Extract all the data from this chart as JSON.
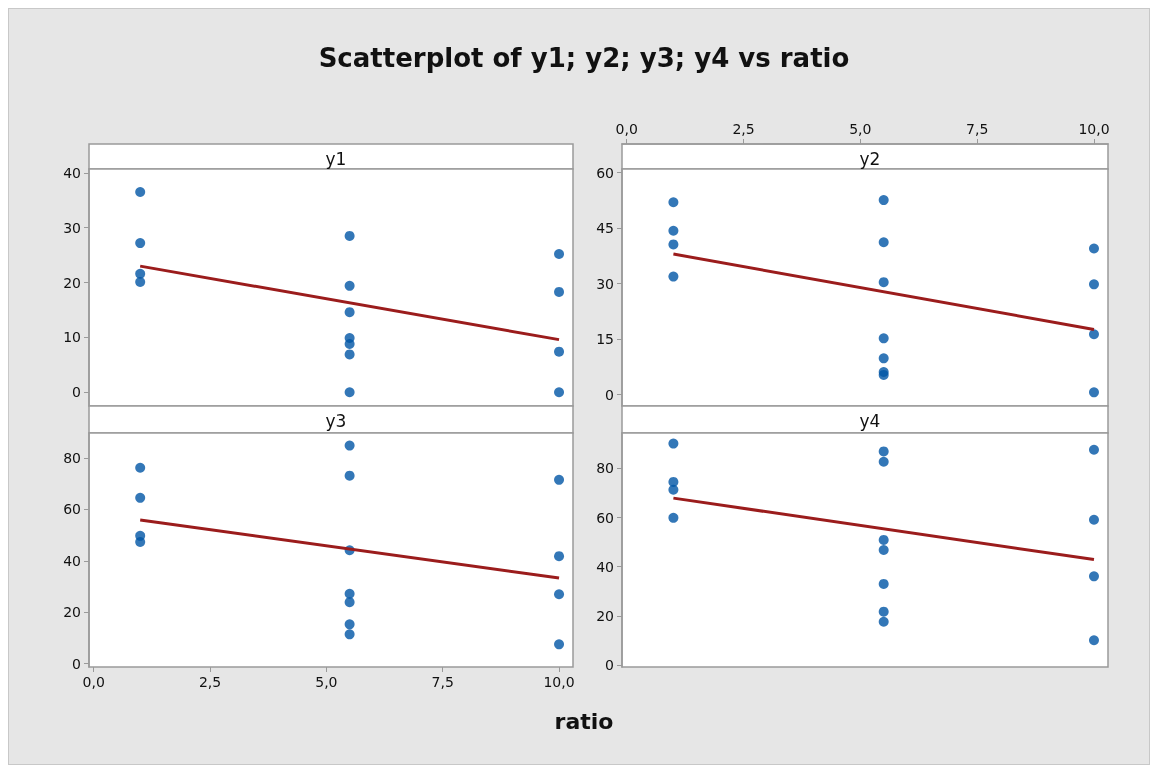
{
  "chart_data": [
    {
      "type": "scatter",
      "title": "y1",
      "annotations": [
        "Scatterplot of y1; y2; y3; y4 vs ratio"
      ],
      "marker": "circle",
      "grid": false,
      "tick_labels": "y",
      "xlim": [
        -0.1,
        10.3
      ],
      "ylim": [
        -2.5,
        40.7
      ],
      "yticks": [
        0,
        10,
        20,
        30,
        40
      ],
      "series": [
        {
          "color": "#0055a5",
          "x": [
            1,
            1,
            1,
            1,
            5.5,
            5.5,
            5.5,
            5.5,
            5.5,
            5.5,
            5.5,
            10,
            10,
            10,
            10
          ],
          "values": [
            36.5,
            27.2,
            21.6,
            20.1,
            28.5,
            19.4,
            14.6,
            9.9,
            8.8,
            6.9,
            0,
            25.2,
            18.3,
            7.4,
            0
          ]
        },
        {
          "type": "line",
          "marker": "none",
          "color": "#9b1c1c",
          "x": [
            1,
            10
          ],
          "values": [
            23.0,
            9.6
          ]
        }
      ]
    },
    {
      "type": "scatter",
      "title": "y2",
      "marker": "circle",
      "grid": false,
      "tick_labels": "y",
      "xlim": [
        -0.1,
        10.3
      ],
      "x2lim": [
        -0.1,
        10.3
      ],
      "x2ticks": [
        {
          "value": 0,
          "label": "0,0"
        },
        {
          "value": 2.5,
          "label": "2,5"
        },
        {
          "value": 5,
          "label": "5,0"
        },
        {
          "value": 7.5,
          "label": "7,5"
        },
        {
          "value": 10,
          "label": "10,0"
        }
      ],
      "ylim": [
        -3.1,
        61
      ],
      "yticks": [
        0,
        15,
        30,
        45,
        60
      ],
      "series": [
        {
          "color": "#0055a5",
          "x": [
            1,
            1,
            1,
            1,
            5.5,
            5.5,
            5.5,
            5.5,
            5.5,
            5.5,
            5.5,
            10,
            10,
            10,
            10
          ],
          "values": [
            52.0,
            44.3,
            40.6,
            31.9,
            52.6,
            41.2,
            30.4,
            15.2,
            9.8,
            6.1,
            5.3,
            39.5,
            29.8,
            16.3,
            0.6
          ]
        },
        {
          "type": "line",
          "marker": "none",
          "color": "#9b1c1c",
          "x": [
            1,
            10
          ],
          "values": [
            38.0,
            17.6
          ]
        }
      ]
    },
    {
      "type": "scatter",
      "title": "y3",
      "xlabel": "ratio",
      "marker": "circle",
      "grid": false,
      "xlim": [
        -0.1,
        10.3
      ],
      "xticks": [
        {
          "value": 0,
          "label": "0,0"
        },
        {
          "value": 2.5,
          "label": "2,5"
        },
        {
          "value": 5,
          "label": "5,0"
        },
        {
          "value": 7.5,
          "label": "7,5"
        },
        {
          "value": 10,
          "label": "10,0"
        }
      ],
      "ylim": [
        -1.3,
        89.7
      ],
      "yticks": [
        0,
        20,
        40,
        60,
        80
      ],
      "series": [
        {
          "color": "#0055a5",
          "x": [
            1,
            1,
            1,
            1,
            5.5,
            5.5,
            5.5,
            5.5,
            5.5,
            5.5,
            5.5,
            10,
            10,
            10,
            10
          ],
          "values": [
            76.2,
            64.5,
            49.7,
            47.3,
            84.8,
            73.1,
            44.1,
            27.2,
            23.9,
            15.3,
            11.4,
            71.5,
            41.8,
            27.0,
            7.5
          ]
        },
        {
          "type": "line",
          "marker": "none",
          "color": "#9b1c1c",
          "x": [
            1,
            10
          ],
          "values": [
            55.9,
            33.3
          ]
        }
      ]
    },
    {
      "type": "scatter",
      "title": "y4",
      "marker": "circle",
      "grid": false,
      "tick_labels": "y",
      "xlim": [
        -0.1,
        10.3
      ],
      "ylim": [
        -0.8,
        94.4
      ],
      "yticks": [
        0,
        20,
        40,
        60,
        80
      ],
      "series": [
        {
          "color": "#0055a5",
          "x": [
            1,
            1,
            1,
            1,
            5.5,
            5.5,
            5.5,
            5.5,
            5.5,
            5.5,
            5.5,
            10,
            10,
            10,
            10
          ],
          "values": [
            90.1,
            74.5,
            71.3,
            59.9,
            86.9,
            82.7,
            50.9,
            46.8,
            33.0,
            21.7,
            17.6,
            87.6,
            59.1,
            36.1,
            10.1
          ]
        },
        {
          "type": "line",
          "marker": "none",
          "color": "#9b1c1c",
          "x": [
            1,
            10
          ],
          "values": [
            67.9,
            42.9
          ]
        }
      ]
    }
  ]
}
